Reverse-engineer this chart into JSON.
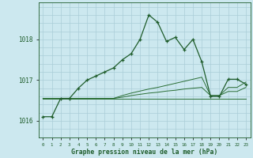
{
  "title": "Graphe pression niveau de la mer (hPa)",
  "bg_color": "#cce8ef",
  "grid_color": "#aacdd8",
  "line_color_dark": "#1e5c2a",
  "line_color_mid": "#2a6e35",
  "xlim": [
    -0.5,
    23.5
  ],
  "ylim": [
    1015.6,
    1018.9
  ],
  "yticks": [
    1016,
    1017,
    1018
  ],
  "xticks": [
    0,
    1,
    2,
    3,
    4,
    5,
    6,
    7,
    8,
    9,
    10,
    11,
    12,
    13,
    14,
    15,
    16,
    17,
    18,
    19,
    20,
    21,
    22,
    23
  ],
  "series_main": [
    [
      0,
      1016.1
    ],
    [
      1,
      1016.1
    ],
    [
      2,
      1016.55
    ],
    [
      3,
      1016.55
    ],
    [
      4,
      1016.8
    ],
    [
      5,
      1017.0
    ],
    [
      6,
      1017.1
    ],
    [
      7,
      1017.2
    ],
    [
      8,
      1017.3
    ],
    [
      9,
      1017.5
    ],
    [
      10,
      1017.65
    ],
    [
      11,
      1018.0
    ],
    [
      12,
      1018.6
    ],
    [
      13,
      1018.42
    ],
    [
      14,
      1017.95
    ],
    [
      15,
      1018.05
    ],
    [
      16,
      1017.75
    ],
    [
      17,
      1018.0
    ],
    [
      18,
      1017.45
    ],
    [
      19,
      1016.6
    ],
    [
      20,
      1016.6
    ],
    [
      21,
      1017.02
    ],
    [
      22,
      1017.02
    ],
    [
      23,
      1016.9
    ]
  ],
  "series_flat_base": [
    [
      0,
      1016.55
    ],
    [
      1,
      1016.55
    ],
    [
      2,
      1016.55
    ],
    [
      3,
      1016.55
    ],
    [
      4,
      1016.55
    ],
    [
      5,
      1016.55
    ],
    [
      6,
      1016.55
    ],
    [
      7,
      1016.55
    ],
    [
      8,
      1016.55
    ],
    [
      9,
      1016.55
    ],
    [
      10,
      1016.55
    ],
    [
      11,
      1016.55
    ],
    [
      12,
      1016.55
    ],
    [
      13,
      1016.55
    ],
    [
      14,
      1016.55
    ],
    [
      15,
      1016.55
    ],
    [
      16,
      1016.55
    ],
    [
      17,
      1016.55
    ],
    [
      18,
      1016.55
    ],
    [
      19,
      1016.55
    ],
    [
      20,
      1016.55
    ],
    [
      21,
      1016.55
    ],
    [
      22,
      1016.55
    ],
    [
      23,
      1016.55
    ]
  ],
  "series_flat1": [
    [
      0,
      1016.55
    ],
    [
      1,
      1016.55
    ],
    [
      2,
      1016.55
    ],
    [
      3,
      1016.55
    ],
    [
      4,
      1016.55
    ],
    [
      5,
      1016.55
    ],
    [
      6,
      1016.55
    ],
    [
      7,
      1016.55
    ],
    [
      8,
      1016.55
    ],
    [
      9,
      1016.58
    ],
    [
      10,
      1016.62
    ],
    [
      11,
      1016.65
    ],
    [
      12,
      1016.68
    ],
    [
      13,
      1016.7
    ],
    [
      14,
      1016.73
    ],
    [
      15,
      1016.75
    ],
    [
      16,
      1016.78
    ],
    [
      17,
      1016.8
    ],
    [
      18,
      1016.82
    ],
    [
      19,
      1016.62
    ],
    [
      20,
      1016.62
    ],
    [
      21,
      1016.72
    ],
    [
      22,
      1016.72
    ],
    [
      23,
      1016.82
    ]
  ],
  "series_flat2": [
    [
      0,
      1016.55
    ],
    [
      1,
      1016.55
    ],
    [
      2,
      1016.55
    ],
    [
      3,
      1016.55
    ],
    [
      4,
      1016.55
    ],
    [
      5,
      1016.55
    ],
    [
      6,
      1016.55
    ],
    [
      7,
      1016.55
    ],
    [
      8,
      1016.55
    ],
    [
      9,
      1016.62
    ],
    [
      10,
      1016.68
    ],
    [
      11,
      1016.73
    ],
    [
      12,
      1016.78
    ],
    [
      13,
      1016.82
    ],
    [
      14,
      1016.87
    ],
    [
      15,
      1016.92
    ],
    [
      16,
      1016.97
    ],
    [
      17,
      1017.02
    ],
    [
      18,
      1017.07
    ],
    [
      19,
      1016.62
    ],
    [
      20,
      1016.62
    ],
    [
      21,
      1016.82
    ],
    [
      22,
      1016.82
    ],
    [
      23,
      1016.95
    ]
  ]
}
